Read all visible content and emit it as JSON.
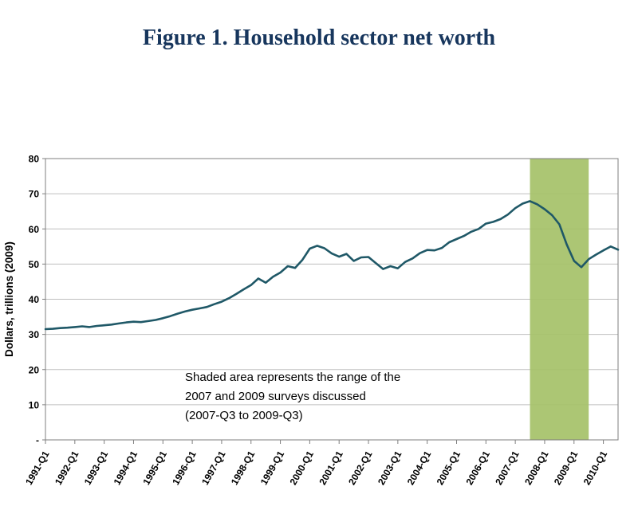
{
  "title": "Figure 1. Household sector net worth",
  "colors": {
    "title_text": "#17365d",
    "line": "#1f5867",
    "band": "#a5c168",
    "grid": "#bfbfbf",
    "axis_border": "#7f7f7f",
    "tick_text": "#000000"
  },
  "chart_data": {
    "type": "line",
    "title": "Figure 1. Household sector net worth",
    "xlabel": "",
    "ylabel": "Dollars, trillions (2009)",
    "ylim": [
      0,
      80
    ],
    "y_tick_step": 10,
    "y_tick_labels": [
      "-",
      "10",
      "20",
      "30",
      "40",
      "50",
      "60",
      "70",
      "80"
    ],
    "grid": "horizontal",
    "legend": "none",
    "x_start": "1991-Q1",
    "frequency": "quarterly",
    "x_tick_labels": [
      "1991-Q1",
      "1992-Q1",
      "1993-Q1",
      "1994-Q1",
      "1995-Q1",
      "1996-Q1",
      "1997-Q1",
      "1998-Q1",
      "1999-Q1",
      "2000-Q1",
      "2001-Q1",
      "2002-Q1",
      "2003-Q1",
      "2004-Q1",
      "2005-Q1",
      "2006-Q1",
      "2007-Q1",
      "2008-Q1",
      "2009-Q1",
      "2010-Q1"
    ],
    "series": [
      {
        "name": "Household sector net worth",
        "values": [
          31.5,
          31.6,
          31.8,
          31.9,
          32.1,
          32.3,
          32.1,
          32.4,
          32.6,
          32.8,
          33.1,
          33.4,
          33.6,
          33.5,
          33.8,
          34.1,
          34.6,
          35.2,
          35.9,
          36.5,
          37.0,
          37.4,
          37.8,
          38.6,
          39.3,
          40.3,
          41.5,
          42.8,
          44.0,
          45.9,
          44.7,
          46.4,
          47.6,
          49.4,
          48.9,
          51.2,
          54.4,
          55.2,
          54.5,
          53.0,
          52.1,
          52.9,
          50.9,
          51.9,
          52.0,
          50.3,
          48.6,
          49.4,
          48.8,
          50.6,
          51.6,
          53.1,
          54.0,
          53.9,
          54.6,
          56.2,
          57.1,
          58.0,
          59.2,
          60.0,
          61.5,
          62.0,
          62.8,
          64.1,
          65.9,
          67.2,
          67.9,
          67.0,
          65.6,
          63.9,
          61.3,
          55.6,
          50.9,
          49.1,
          51.4,
          52.7,
          53.9,
          55.0,
          54.1
        ]
      }
    ],
    "shaded_region": {
      "from": "2007-Q3",
      "to": "2009-Q3",
      "from_index": 66,
      "to_index": 74,
      "color": "#a5c168"
    },
    "annotation": {
      "lines": [
        "Shaded area represents the range of the",
        "2007 and 2009 surveys  discussed",
        "(2007-Q3 to 2009-Q3)"
      ]
    }
  }
}
